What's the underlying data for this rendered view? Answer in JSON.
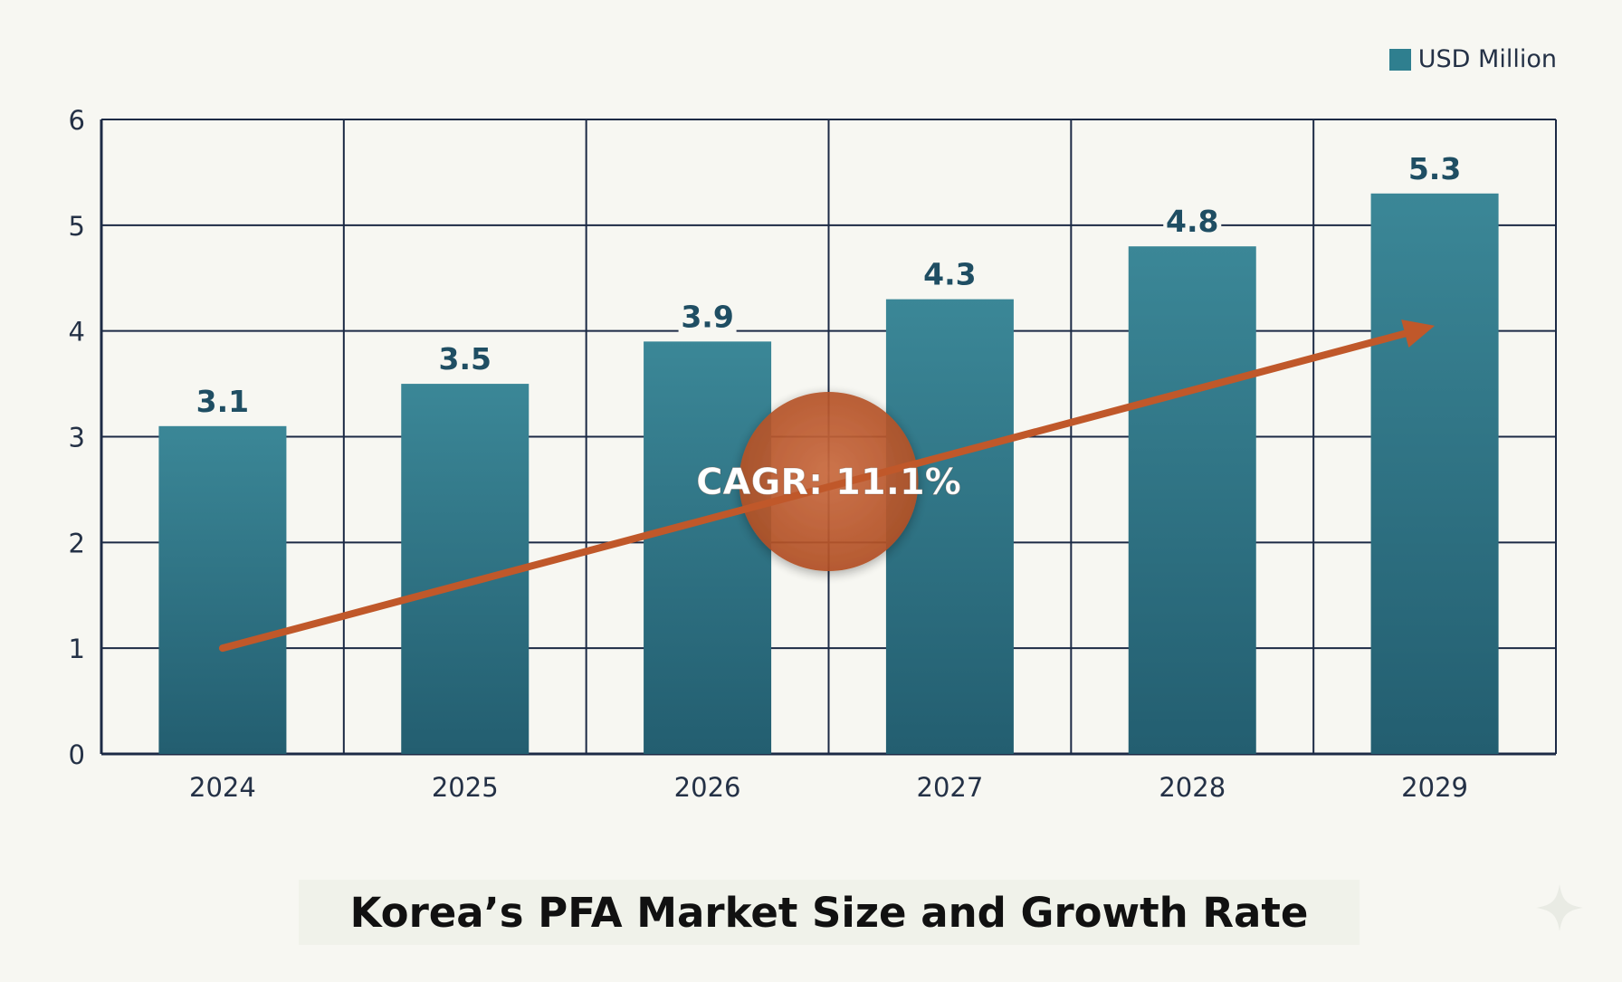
{
  "chart_data": {
    "type": "bar",
    "title": "Korea’s PFA Market Size and Growth Rate",
    "legend": [
      "USD Million"
    ],
    "legend_position": "top-right",
    "categories": [
      "2024",
      "2025",
      "2026",
      "2027",
      "2028",
      "2029"
    ],
    "series": [
      {
        "name": "USD Million",
        "values": [
          3.1,
          3.5,
          3.9,
          4.3,
          4.8,
          5.3
        ]
      }
    ],
    "data_labels": [
      "3.1",
      "3.5",
      "3.9",
      "4.3",
      "4.8",
      "5.3"
    ],
    "y_ticks": [
      "0",
      "1",
      "2",
      "3",
      "4",
      "5",
      "6"
    ],
    "ylim": [
      0,
      6
    ],
    "grid": true,
    "annotation": {
      "text": "CAGR: 11.1%",
      "arrow_from": {
        "x": "2024",
        "y": 1.0
      },
      "arrow_to": {
        "x": "2029",
        "y": 4.05
      }
    },
    "xlabel": "",
    "ylabel": ""
  },
  "colors": {
    "bar": "#2f7f8f",
    "bar_dark": "#225d6d",
    "grid": "#1c2a45",
    "arrow": "#c0582a",
    "label": "#1f4e63",
    "background": "#f7f7f2"
  }
}
